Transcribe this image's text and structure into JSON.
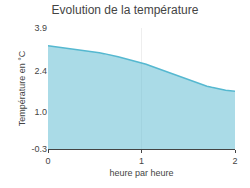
{
  "chart_data": {
    "type": "area",
    "title": "Evolution de la température",
    "x_label": "heure par heure",
    "y_label": "Température en °C",
    "x": [
      0.0,
      0.05,
      0.1,
      0.15,
      0.2,
      0.25,
      0.3,
      0.35,
      0.4,
      0.45,
      0.5,
      0.55,
      0.6,
      0.65,
      0.7,
      0.75,
      0.8,
      0.85,
      0.9,
      0.95,
      1.0,
      1.05,
      1.1,
      1.15,
      1.2,
      1.25,
      1.3,
      1.35,
      1.4,
      1.45,
      1.5,
      1.55,
      1.6,
      1.65,
      1.7,
      1.75,
      1.8,
      1.85,
      1.9,
      1.95,
      2.0
    ],
    "values": [
      3.28,
      3.26,
      3.24,
      3.22,
      3.2,
      3.18,
      3.16,
      3.14,
      3.12,
      3.1,
      3.07,
      3.04,
      3.01,
      2.98,
      2.94,
      2.9,
      2.86,
      2.82,
      2.78,
      2.74,
      2.7,
      2.64,
      2.58,
      2.52,
      2.46,
      2.4,
      2.34,
      2.28,
      2.22,
      2.16,
      2.1,
      2.04,
      1.98,
      1.93,
      1.88,
      1.84,
      1.8,
      1.77,
      1.74,
      1.72,
      1.7
    ],
    "color": "#55b8d0",
    "xlim": [
      0,
      2
    ],
    "ylim": [
      -0.3,
      3.9
    ],
    "xticks": [
      0,
      1,
      2
    ],
    "yticks": [
      -0.3,
      {
        "value": 1.0,
        "label": "1.0"
      },
      2.4,
      3.9
    ],
    "grid": "x"
  }
}
